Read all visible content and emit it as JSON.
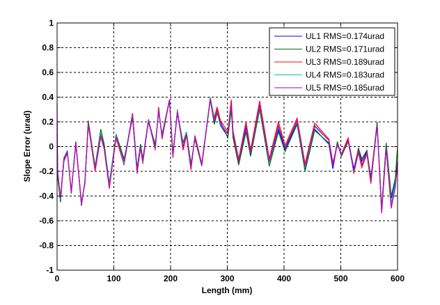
{
  "chart_data": {
    "type": "line",
    "title": "",
    "xlabel": "Length (mm)",
    "ylabel": "Slope Error (urad)",
    "xlim": [
      0,
      600
    ],
    "ylim": [
      -1,
      1
    ],
    "xticks": [
      0,
      100,
      200,
      300,
      400,
      500,
      600
    ],
    "yticks": [
      -1,
      -0.8,
      -0.6,
      -0.4,
      -0.2,
      0,
      0.2,
      0.4,
      0.6,
      0.8,
      1
    ],
    "xtick_labels": [
      "0",
      "100",
      "200",
      "300",
      "400",
      "500",
      "600"
    ],
    "ytick_labels": [
      "-1",
      "-0.8",
      "-0.6",
      "-0.4",
      "-0.2",
      "0",
      "0.2",
      "0.4",
      "0.6",
      "0.8",
      "1"
    ],
    "grid": true,
    "legend_position": "top-right",
    "x": [
      0,
      1,
      6,
      12,
      18,
      25,
      33,
      43,
      49,
      55,
      67,
      77,
      83,
      92,
      104,
      118,
      133,
      141,
      147,
      151,
      161,
      173,
      179,
      185,
      198,
      204,
      212,
      222,
      228,
      236,
      243,
      255,
      270,
      277,
      282,
      288,
      301,
      307,
      310,
      320,
      333,
      341,
      357,
      374,
      390,
      402,
      423,
      437,
      454,
      479,
      486,
      494,
      501,
      513,
      523,
      531,
      537,
      546,
      553,
      564,
      572,
      580,
      589,
      596,
      600
    ],
    "series": [
      {
        "name": "UL1 RMS=0.174urad",
        "color": "#0000ff",
        "values": [
          0.1,
          -0.22,
          -0.42,
          -0.12,
          -0.05,
          -0.36,
          0.02,
          -0.45,
          -0.3,
          0.17,
          -0.17,
          0.1,
          0.0,
          -0.3,
          0.07,
          -0.13,
          0.27,
          -0.18,
          0.02,
          -0.11,
          0.22,
          0.0,
          0.29,
          0.09,
          0.37,
          -0.06,
          0.27,
          0.0,
          0.11,
          -0.15,
          0.07,
          -0.14,
          0.38,
          0.2,
          0.28,
          0.17,
          0.08,
          0.32,
          0.08,
          -0.13,
          0.15,
          -0.06,
          0.31,
          -0.13,
          0.14,
          -0.02,
          0.19,
          -0.19,
          0.14,
          0.02,
          -0.18,
          0.03,
          -0.06,
          0.06,
          -0.18,
          -0.02,
          -0.12,
          -0.04,
          -0.25,
          0.17,
          -0.5,
          0.0,
          -0.42,
          -0.28,
          -0.12
        ]
      },
      {
        "name": "UL2 RMS=0.171urad",
        "color": "#007000",
        "values": [
          0.0,
          -0.25,
          -0.45,
          -0.1,
          -0.03,
          -0.38,
          0.04,
          -0.48,
          -0.28,
          0.21,
          -0.16,
          0.14,
          0.02,
          -0.3,
          0.1,
          -0.1,
          0.23,
          -0.19,
          0.02,
          -0.1,
          0.2,
          0.02,
          0.28,
          0.1,
          0.38,
          -0.05,
          0.28,
          0.03,
          0.12,
          -0.14,
          0.06,
          -0.16,
          0.38,
          0.18,
          0.27,
          0.2,
          0.07,
          0.3,
          0.07,
          -0.15,
          0.12,
          -0.08,
          0.3,
          -0.16,
          0.12,
          -0.04,
          0.18,
          -0.2,
          0.13,
          0.03,
          -0.15,
          0.04,
          -0.08,
          0.04,
          -0.2,
          -0.01,
          -0.1,
          -0.03,
          -0.26,
          0.2,
          -0.5,
          0.03,
          -0.4,
          -0.26,
          0.0
        ]
      },
      {
        "name": "UL3 RMS=0.189urad",
        "color": "#ff0000",
        "values": [
          0.2,
          -0.2,
          -0.41,
          -0.09,
          -0.04,
          -0.36,
          0.04,
          -0.45,
          -0.3,
          0.18,
          -0.2,
          0.08,
          -0.02,
          -0.34,
          0.07,
          -0.15,
          0.27,
          -0.22,
          -0.01,
          -0.14,
          0.22,
          -0.03,
          0.32,
          0.06,
          0.38,
          -0.09,
          0.3,
          -0.03,
          0.09,
          -0.19,
          0.09,
          -0.14,
          0.39,
          0.23,
          0.32,
          0.21,
          0.12,
          0.38,
          0.13,
          -0.1,
          0.2,
          -0.03,
          0.37,
          -0.1,
          0.2,
          0.01,
          0.23,
          -0.14,
          0.19,
          0.06,
          -0.13,
          0.01,
          -0.06,
          0.07,
          -0.22,
          -0.05,
          -0.17,
          -0.06,
          -0.3,
          0.17,
          -0.54,
          -0.02,
          -0.5,
          -0.33,
          -0.15
        ]
      },
      {
        "name": "UL4 RMS=0.183urad",
        "color": "#00c0c0",
        "values": [
          0.15,
          -0.21,
          -0.43,
          -0.12,
          -0.03,
          -0.37,
          0.02,
          -0.46,
          -0.28,
          0.19,
          -0.17,
          0.11,
          -0.02,
          -0.31,
          0.09,
          -0.14,
          0.25,
          -0.21,
          0.0,
          -0.13,
          0.21,
          -0.02,
          0.3,
          0.08,
          0.38,
          -0.07,
          0.29,
          -0.01,
          0.12,
          -0.17,
          0.08,
          -0.16,
          0.4,
          0.21,
          0.29,
          0.18,
          0.1,
          0.35,
          0.11,
          -0.12,
          0.17,
          -0.05,
          0.33,
          -0.13,
          0.16,
          0.0,
          0.2,
          -0.17,
          0.16,
          0.05,
          -0.15,
          0.02,
          -0.07,
          0.05,
          -0.21,
          -0.03,
          -0.15,
          -0.05,
          -0.28,
          0.18,
          -0.52,
          -0.01,
          -0.46,
          -0.3,
          -0.14
        ]
      },
      {
        "name": "UL5 RMS=0.185urad",
        "color": "#c000c0",
        "legend_color": "#a000c0",
        "values": [
          0.35,
          -0.2,
          -0.42,
          -0.11,
          -0.04,
          -0.37,
          0.03,
          -0.47,
          -0.29,
          0.19,
          -0.18,
          0.09,
          -0.01,
          -0.33,
          0.08,
          -0.12,
          0.24,
          -0.21,
          0.0,
          -0.12,
          0.2,
          -0.01,
          0.3,
          0.07,
          0.38,
          -0.08,
          0.28,
          -0.01,
          0.1,
          -0.17,
          0.08,
          -0.15,
          0.39,
          0.21,
          0.3,
          0.19,
          0.1,
          0.35,
          0.1,
          -0.12,
          0.17,
          -0.05,
          0.34,
          -0.12,
          0.17,
          -0.01,
          0.21,
          -0.16,
          0.17,
          0.05,
          -0.15,
          0.02,
          -0.07,
          0.05,
          -0.2,
          -0.03,
          -0.15,
          -0.05,
          -0.28,
          0.18,
          -0.53,
          -0.01,
          -0.49,
          -0.33,
          -0.12
        ]
      }
    ]
  }
}
